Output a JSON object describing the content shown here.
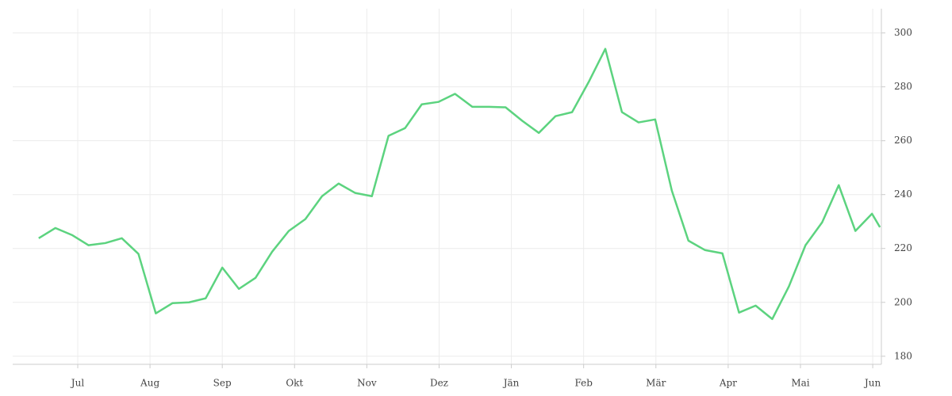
{
  "chart_data": {
    "type": "line",
    "x": [
      -0.54,
      -0.31,
      -0.08,
      0.15,
      0.38,
      0.61,
      0.84,
      1.08,
      1.31,
      1.54,
      1.77,
      2.0,
      2.23,
      2.46,
      2.69,
      2.92,
      3.15,
      3.38,
      3.61,
      3.84,
      4.07,
      4.3,
      4.53,
      4.76,
      4.99,
      5.22,
      5.46,
      5.69,
      5.92,
      6.15,
      6.38,
      6.61,
      6.84,
      7.07,
      7.3,
      7.53,
      7.76,
      7.99,
      8.22,
      8.45,
      8.68,
      8.92,
      9.15,
      9.38,
      9.61,
      9.84,
      10.07,
      10.3,
      10.53,
      10.76,
      10.99,
      11.1
    ],
    "series": [
      {
        "color": "#5cd37f",
        "values": [
          223.8,
          227.6,
          225,
          221.2,
          222,
          223.8,
          218,
          195.9,
          199.7,
          200,
          201.5,
          212.9,
          205,
          209.1,
          218.8,
          226.5,
          230.9,
          239.4,
          244.1,
          240.6,
          239.4,
          261.8,
          264.7,
          273.5,
          274.4,
          277.4,
          272.6,
          272.6,
          272.4,
          267.4,
          262.9,
          269.1,
          270.6,
          281.8,
          294.1,
          270.6,
          266.8,
          267.9,
          241.5,
          222.9,
          219.4,
          218.2,
          196.2,
          198.8,
          193.8,
          205.9,
          221.2,
          229.7,
          243.5,
          226.5,
          232.9,
          227.9
        ]
      }
    ],
    "xlim": [
      -0.9,
      11.12
    ],
    "xticks": [
      {
        "value": 0,
        "label": "Jul"
      },
      {
        "value": 1,
        "label": "Aug"
      },
      {
        "value": 2,
        "label": "Sep"
      },
      {
        "value": 3,
        "label": "Okt"
      },
      {
        "value": 4,
        "label": "Nov"
      },
      {
        "value": 5,
        "label": "Dez"
      },
      {
        "value": 6,
        "label": "Jän"
      },
      {
        "value": 7,
        "label": "Feb"
      },
      {
        "value": 8,
        "label": "Mär"
      },
      {
        "value": 9,
        "label": "Apr"
      },
      {
        "value": 10,
        "label": "Mai"
      },
      {
        "value": 11,
        "label": "Jun"
      }
    ],
    "ylim": [
      177,
      309
    ],
    "yticks": [
      180,
      200,
      220,
      240,
      260,
      280,
      300
    ],
    "grid": true
  }
}
